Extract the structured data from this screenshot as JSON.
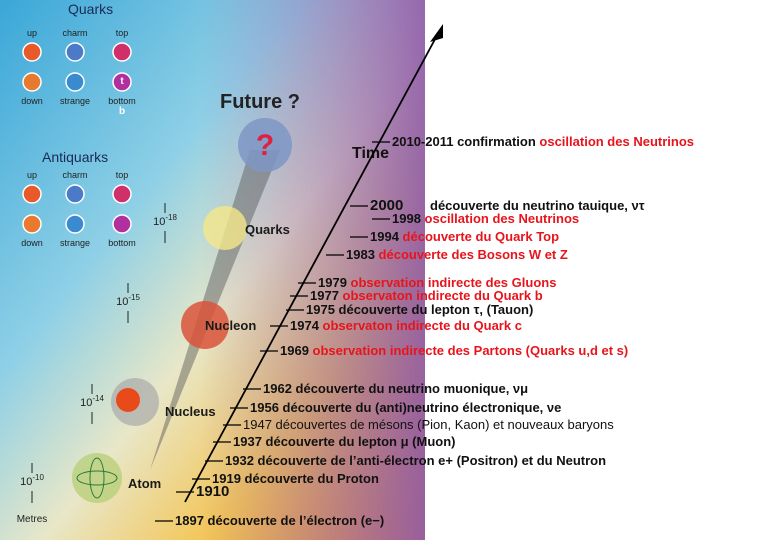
{
  "quarks": {
    "title": "Quarks",
    "labels": [
      "up",
      "charm",
      "top",
      "down",
      "strange",
      "bottom"
    ],
    "symbols": [
      "t",
      "b"
    ]
  },
  "antiquarks": {
    "title": "Antiquarks",
    "labels": [
      "up",
      "charm",
      "top",
      "down",
      "strange",
      "bottom"
    ]
  },
  "future": "Future ?",
  "question": "?",
  "scales": [
    {
      "base": "10",
      "exp": "-18",
      "name": "Quarks"
    },
    {
      "base": "10",
      "exp": "-15",
      "name": "Nucleon"
    },
    {
      "base": "10",
      "exp": "-14",
      "name": "Nucleus"
    },
    {
      "base": "10",
      "exp": "-10",
      "name": "Atom"
    }
  ],
  "unit": "Metres",
  "axis": "Time",
  "events": [
    {
      "label": "2010-2011 confirmation ",
      "highlight": "oscillation des Neutrinos"
    },
    {
      "label": "2000",
      "note": "découverte du neutrino tauique, ντ"
    },
    {
      "label": "1998 ",
      "highlight": "oscillation des Neutrinos"
    },
    {
      "label": "1994 ",
      "highlight": "découverte du Quark Top"
    },
    {
      "label": "1983 ",
      "highlight": "découverte des Bosons W et Z"
    },
    {
      "label": "1979 ",
      "highlight": "observation indirecte des Gluons"
    },
    {
      "label": "1977 ",
      "highlight": "observaton indirecte du Quark b"
    },
    {
      "label": "1975 découverte du lepton τ, (Tauon)"
    },
    {
      "label": "1974 ",
      "highlight": "observaton indirecte du Quark c"
    },
    {
      "label": "1969 ",
      "highlight": "observation indirecte des Partons (Quarks u,d et s)"
    },
    {
      "label": "1962 découverte du neutrino muonique, νμ"
    },
    {
      "label": "1956 découverte du (anti)neutrino électronique, νe"
    },
    {
      "label": "1947 découvertes de mésons (Pion, Kaon) et nouveaux baryons"
    },
    {
      "label": "1937 découverte du lepton μ (Muon)"
    },
    {
      "label": "1932 découverte de l’anti-électron e+ (Positron) et du Neutron"
    },
    {
      "label": "1919 découverte du Proton"
    },
    {
      "label": "1910"
    },
    {
      "label": "1897 découverte de l’électron (e−)"
    }
  ]
}
